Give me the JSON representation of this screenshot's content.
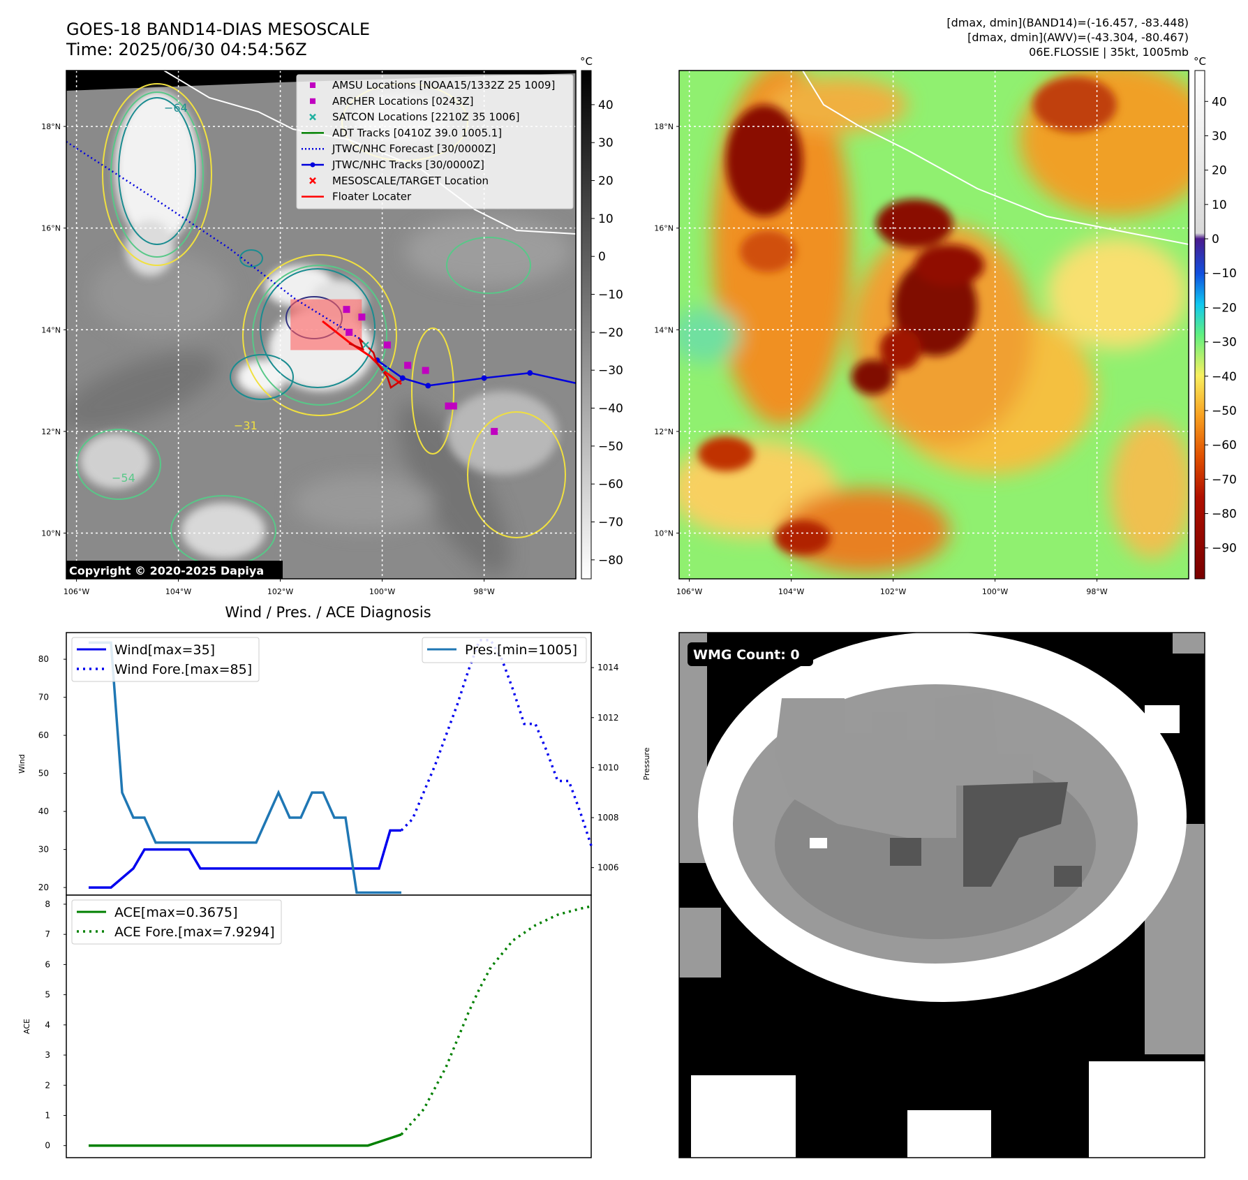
{
  "header": {
    "title_line1": "GOES-18 BAND14-DIAS MESOSCALE",
    "title_line2": "Time: 2025/06/30 04:54:56Z",
    "stats_line1": "[dmax, dmin](BAND14)=(-16.457, -83.448)",
    "stats_line2": "[dmax, dmin](AWV)=(-43.304, -80.467)",
    "stats_line3": "06E.FLOSSIE | 35kt, 1005mb"
  },
  "map_axes": {
    "lat_ticks": [
      "18°N",
      "16°N",
      "14°N",
      "12°N",
      "10°N"
    ],
    "lat_values": [
      18,
      16,
      14,
      12,
      10
    ],
    "lon_ticks": [
      "106°W",
      "104°W",
      "102°W",
      "100°W",
      "98°W"
    ],
    "lon_values": [
      -106,
      -104,
      -102,
      -100,
      -98
    ],
    "lat_range": [
      9.1,
      19.1
    ],
    "lon_range": [
      -106.2,
      -96.2
    ]
  },
  "left_map": {
    "copyright": "Copyright © 2020-2025 Dapiya",
    "colorbar_unit": "°C",
    "colorbar_ticks": [
      "40",
      "30",
      "20",
      "10",
      "0",
      "−10",
      "−20",
      "−30",
      "−40",
      "−50",
      "−60",
      "−70",
      "−80"
    ],
    "colorbar_values": [
      40,
      30,
      20,
      10,
      0,
      -10,
      -20,
      -30,
      -40,
      -50,
      -60,
      -70,
      -80
    ],
    "colorbar_range": [
      -85,
      49
    ],
    "contour_labels": [
      "−31",
      "−54",
      "−64"
    ],
    "legend": [
      {
        "label": "AMSU Locations [NOAA15/1332Z 25 1009]",
        "marker": "square",
        "color": "#c000c0"
      },
      {
        "label": "ARCHER Locations [0243Z]",
        "marker": "square",
        "color": "#c000c0"
      },
      {
        "label": "SATCON Locations [2210Z 35 1006]",
        "marker": "x",
        "color": "#20b0a0"
      },
      {
        "label": "ADT Tracks [0410Z 39.0 1005.1]",
        "marker": "line",
        "color": "#008000"
      },
      {
        "label": "JTWC/NHC Forecast [30/0000Z]",
        "marker": "dotted",
        "color": "#0000dd"
      },
      {
        "label": "JTWC/NHC Tracks [30/0000Z]",
        "marker": "line-dot",
        "color": "#0000dd"
      },
      {
        "label": "MESOSCALE/TARGET Location",
        "marker": "x",
        "color": "#ff0000"
      },
      {
        "label": "Floater Locater",
        "marker": "line",
        "color": "#ff0000"
      }
    ],
    "amsu_points": [
      [
        -100.7,
        14.4
      ],
      [
        -100.4,
        14.25
      ],
      [
        -100.65,
        13.95
      ],
      [
        -99.9,
        13.7
      ],
      [
        -99.5,
        13.3
      ],
      [
        -99.15,
        13.2
      ],
      [
        -98.7,
        12.5
      ],
      [
        -98.6,
        12.5
      ],
      [
        -97.8,
        12.0
      ]
    ],
    "forecast_track": [
      [
        -106.2,
        17.7
      ],
      [
        -104.5,
        16.6
      ],
      [
        -103.0,
        15.6
      ],
      [
        -101.7,
        14.6
      ],
      [
        -100.4,
        13.8
      ]
    ],
    "best_track": [
      [
        -100.1,
        13.4
      ],
      [
        -99.6,
        13.05
      ],
      [
        -99.1,
        12.9
      ],
      [
        -98.0,
        13.05
      ],
      [
        -97.1,
        13.15
      ],
      [
        -96.2,
        12.95
      ]
    ],
    "floater_box": {
      "lon": [
        -101.8,
        -100.4
      ],
      "lat": [
        13.6,
        14.6
      ]
    }
  },
  "right_map": {
    "colorbar_unit": "°C",
    "colorbar_ticks": [
      "40",
      "30",
      "20",
      "10",
      "0",
      "−10",
      "−20",
      "−30",
      "−40",
      "−50",
      "−60",
      "−70",
      "−80",
      "−90"
    ],
    "colorbar_values": [
      40,
      30,
      20,
      10,
      0,
      -10,
      -20,
      -30,
      -40,
      -50,
      -60,
      -70,
      -80,
      -90
    ],
    "colorbar_range": [
      -99,
      49
    ]
  },
  "wmg": {
    "label": "WMG Count: 0"
  },
  "chart_data": [
    {
      "type": "line",
      "title": "Wind / Pres. / ACE Diagnosis",
      "xlabel": "",
      "ylabel": "Wind",
      "ylabel_right": "Pressure",
      "xlim": [
        -2,
        45
      ],
      "ylim": [
        18,
        87
      ],
      "ylim_right": [
        1004.9,
        1015.4
      ],
      "yticks": [
        20,
        30,
        40,
        50,
        60,
        70,
        80
      ],
      "yticks_right": [
        1006,
        1008,
        1010,
        1012,
        1014
      ],
      "series": [
        {
          "name": "Wind[max=35]",
          "axis": "left",
          "style": "solid",
          "color": "#0000ee",
          "x": [
            0,
            2,
            4,
            5,
            6,
            7,
            8,
            9,
            10,
            11,
            12,
            13,
            14,
            15,
            16,
            17,
            18,
            19,
            20,
            21,
            22,
            23,
            24,
            25,
            26,
            27,
            28
          ],
          "y": [
            20,
            20,
            25,
            30,
            30,
            30,
            30,
            30,
            25,
            25,
            25,
            25,
            25,
            25,
            25,
            25,
            25,
            25,
            25,
            25,
            25,
            25,
            25,
            25,
            25,
            35,
            35
          ]
        },
        {
          "name": "Wind Fore.[max=85]",
          "axis": "left",
          "style": "dotted",
          "color": "#0000ee",
          "x": [
            28,
            29,
            30,
            31,
            32,
            33,
            34,
            35,
            36,
            37,
            38,
            39,
            40,
            41,
            42,
            43,
            44,
            45
          ],
          "y": [
            35,
            38,
            45,
            52,
            60,
            68,
            77,
            85,
            85,
            80,
            72,
            63,
            63,
            56,
            48,
            48,
            40,
            31
          ]
        },
        {
          "name": "Pres.[min=1005]",
          "axis": "right",
          "style": "solid",
          "color": "#1f77b4",
          "x": [
            0,
            1,
            2,
            3,
            4,
            5,
            6,
            7,
            8,
            9,
            10,
            11,
            12,
            13,
            14,
            15,
            16,
            17,
            18,
            19,
            20,
            21,
            22,
            23,
            24,
            25,
            26,
            27,
            28
          ],
          "y": [
            1015,
            1015,
            1015,
            1009,
            1008,
            1008,
            1007,
            1007,
            1007,
            1007,
            1007,
            1007,
            1007,
            1007,
            1007,
            1007,
            1008,
            1009,
            1008,
            1008,
            1009,
            1009,
            1008,
            1008,
            1005,
            1005,
            1005,
            1005,
            1005
          ]
        }
      ]
    },
    {
      "type": "line",
      "xlabel": "",
      "ylabel": "ACE",
      "xlim": [
        -2,
        45
      ],
      "ylim": [
        -0.4,
        8.3
      ],
      "yticks": [
        0,
        1,
        2,
        3,
        4,
        5,
        6,
        7,
        8
      ],
      "series": [
        {
          "name": "ACE[max=0.3675]",
          "style": "solid",
          "color": "#008000",
          "x": [
            0,
            5,
            10,
            15,
            20,
            25,
            28
          ],
          "y": [
            0,
            0,
            0,
            0,
            0,
            0.0,
            0.3675
          ]
        },
        {
          "name": "ACE Fore.[max=7.9294]",
          "style": "dotted",
          "color": "#008000",
          "x": [
            28,
            30,
            32,
            34,
            35,
            36,
            38,
            40,
            42,
            44,
            45
          ],
          "y": [
            0.3675,
            1.2,
            2.6,
            4.4,
            5.2,
            5.9,
            6.8,
            7.3,
            7.65,
            7.85,
            7.93
          ]
        }
      ]
    }
  ]
}
